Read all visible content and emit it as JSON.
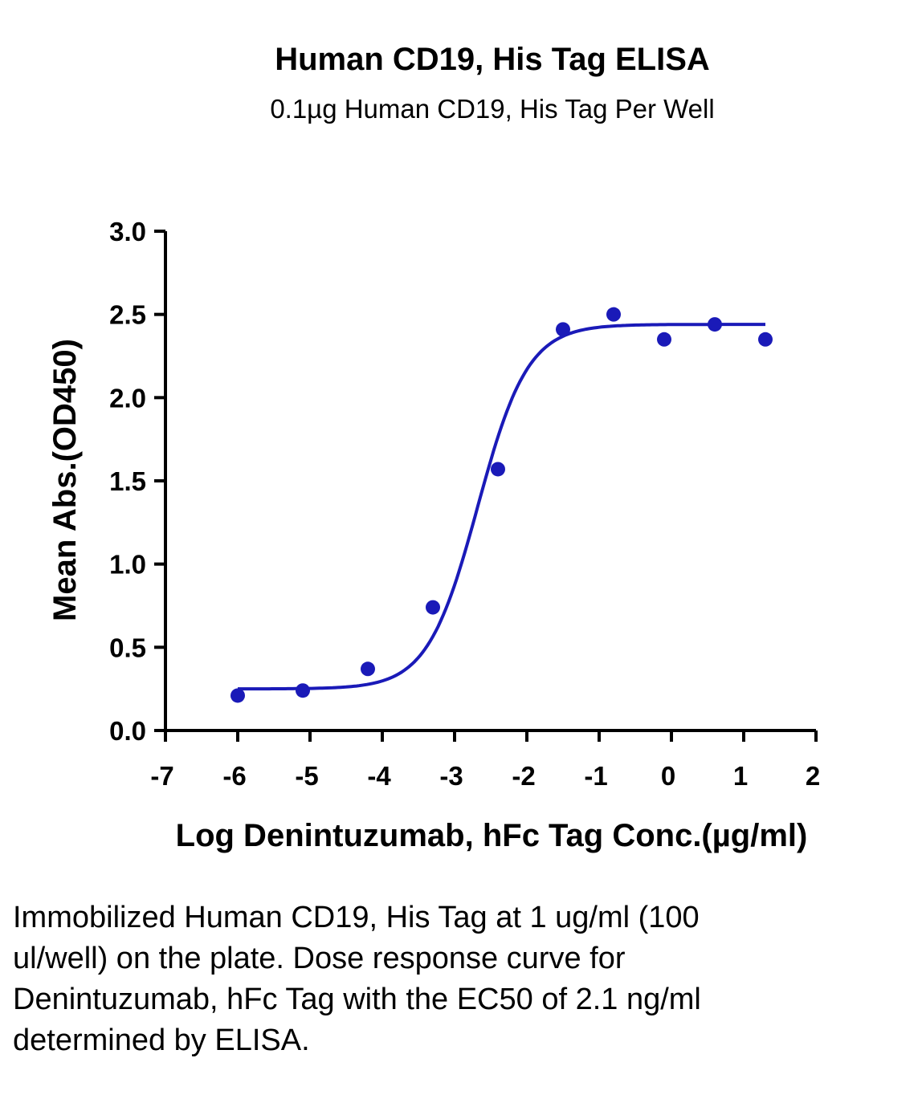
{
  "chart_data": {
    "type": "scatter",
    "title": "Human CD19, His Tag ELISA",
    "subtitle": "0.1µg Human CD19, His Tag Per Well",
    "xlabel": "Log Denintuzumab, hFc Tag Conc.(µg/ml)",
    "ylabel": "Mean Abs.(OD450)",
    "xlim": [
      -7,
      2
    ],
    "ylim": [
      0,
      3.0
    ],
    "xticks": [
      "-7",
      "-6",
      "-5",
      "-4",
      "-3",
      "-2",
      "-1",
      "0",
      "1",
      "2"
    ],
    "yticks": [
      "0.0",
      "0.5",
      "1.0",
      "1.5",
      "2.0",
      "2.5",
      "3.0"
    ],
    "grid": false,
    "color": "#1a1ab8",
    "points": {
      "x": [
        -6.0,
        -5.1,
        -4.2,
        -3.3,
        -2.4,
        -1.5,
        -0.8,
        -0.1,
        0.6,
        1.3
      ],
      "y": [
        0.21,
        0.24,
        0.37,
        0.74,
        1.57,
        2.41,
        2.5,
        2.35,
        2.44,
        2.35
      ]
    },
    "fit": {
      "model": "4PL",
      "bottom": 0.25,
      "top": 2.44,
      "logEC50": -2.68,
      "hill": 1.25,
      "xrange": [
        -6.0,
        1.3
      ]
    }
  },
  "caption": "Immobilized Human CD19, His Tag at 1 ug/ml (100 ul/well) on the plate. Dose response curve for Denintuzumab, hFc Tag with the EC50 of 2.1 ng/ml determined by ELISA."
}
